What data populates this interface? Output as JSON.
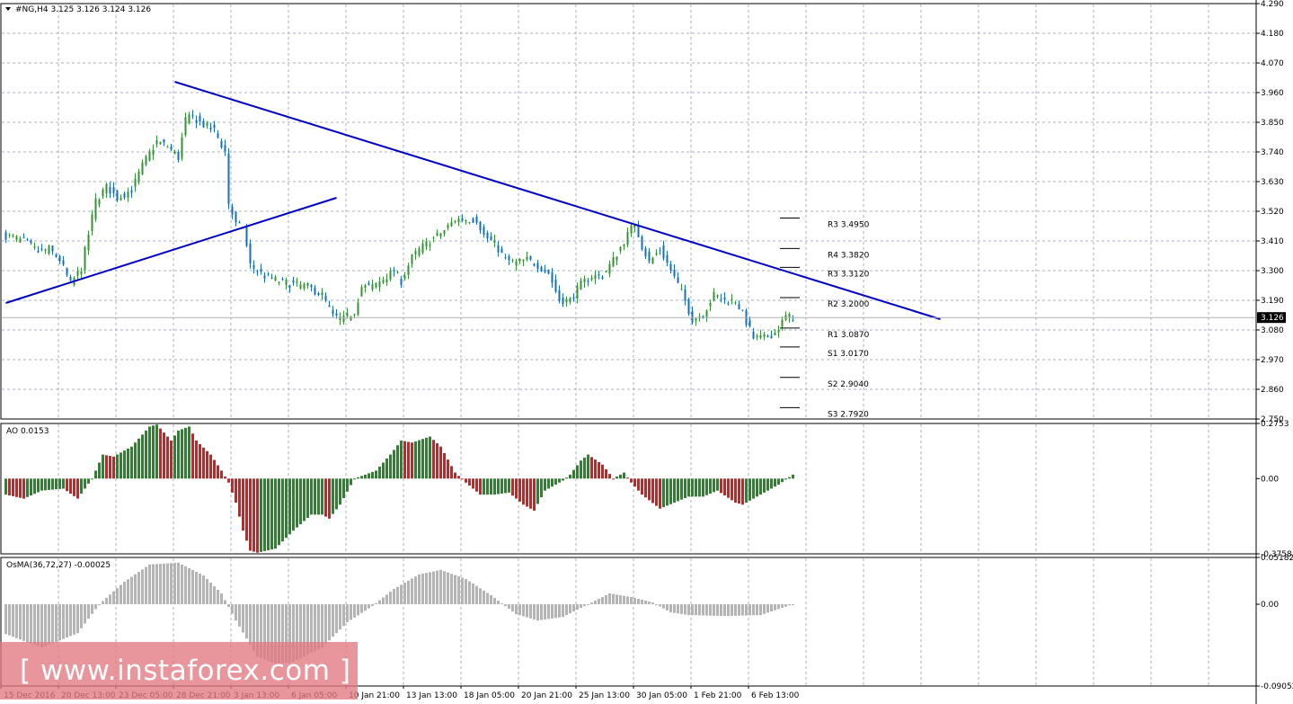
{
  "window": {
    "symbol_label": "#NG,H4",
    "ohlc_label": "3.125 3.126 3.124 3.126"
  },
  "price_axis": {
    "current_price_label": "3.126"
  },
  "colors": {
    "bull": "#3a8f3a",
    "bear": "#1a6fb0",
    "trendline": "#0000c8",
    "ao_up": "#1e8c1e",
    "ao_down": "#e01a1a",
    "osma": "#b4b4b4",
    "grid": "#a9b2bd"
  },
  "watermark": {
    "text": "[ www.instaforex.com ]"
  },
  "chart_data": [
    {
      "type": "candlestick",
      "title": "#NG,H4",
      "ylim": [
        2.75,
        4.29
      ],
      "yticks": [
        "4.290",
        "4.180",
        "4.070",
        "3.960",
        "3.850",
        "3.740",
        "3.630",
        "3.520",
        "3.410",
        "3.300",
        "3.190",
        "3.080",
        "2.970",
        "2.860",
        "2.750"
      ],
      "x_labels": [
        "15 Dec 2016",
        "20 Dec 13:00",
        "23 Dec 05:00",
        "28 Dec 21:00",
        "3 Jan 13:00",
        "6 Jan 05:00",
        "10 Jan 21:00",
        "13 Jan 13:00",
        "18 Jan 05:00",
        "20 Jan 21:00",
        "25 Jan 13:00",
        "30 Jan 05:00",
        "1 Feb 21:00",
        "6 Feb 13:00"
      ],
      "close_path": [
        {
          "i": 0,
          "p": 3.43
        },
        {
          "i": 5,
          "p": 3.41
        },
        {
          "i": 9,
          "p": 3.37
        },
        {
          "i": 12,
          "p": 3.38
        },
        {
          "i": 15,
          "p": 3.34
        },
        {
          "i": 18,
          "p": 3.25
        },
        {
          "i": 21,
          "p": 3.31
        },
        {
          "i": 25,
          "p": 3.56
        },
        {
          "i": 28,
          "p": 3.61
        },
        {
          "i": 31,
          "p": 3.57
        },
        {
          "i": 35,
          "p": 3.6
        },
        {
          "i": 38,
          "p": 3.69
        },
        {
          "i": 42,
          "p": 3.78
        },
        {
          "i": 45,
          "p": 3.76
        },
        {
          "i": 48,
          "p": 3.72
        },
        {
          "i": 50,
          "p": 3.86
        },
        {
          "i": 52,
          "p": 3.87
        },
        {
          "i": 55,
          "p": 3.84
        },
        {
          "i": 58,
          "p": 3.82
        },
        {
          "i": 61,
          "p": 3.74
        },
        {
          "i": 62,
          "p": 3.55
        },
        {
          "i": 64,
          "p": 3.47
        },
        {
          "i": 66,
          "p": 3.46
        },
        {
          "i": 68,
          "p": 3.32
        },
        {
          "i": 72,
          "p": 3.28
        },
        {
          "i": 76,
          "p": 3.26
        },
        {
          "i": 80,
          "p": 3.25
        },
        {
          "i": 84,
          "p": 3.24
        },
        {
          "i": 88,
          "p": 3.21
        },
        {
          "i": 91,
          "p": 3.13
        },
        {
          "i": 94,
          "p": 3.12
        },
        {
          "i": 97,
          "p": 3.15
        },
        {
          "i": 99,
          "p": 3.24
        },
        {
          "i": 102,
          "p": 3.24
        },
        {
          "i": 105,
          "p": 3.27
        },
        {
          "i": 108,
          "p": 3.3
        },
        {
          "i": 110,
          "p": 3.26
        },
        {
          "i": 113,
          "p": 3.35
        },
        {
          "i": 116,
          "p": 3.39
        },
        {
          "i": 119,
          "p": 3.42
        },
        {
          "i": 122,
          "p": 3.45
        },
        {
          "i": 125,
          "p": 3.49
        },
        {
          "i": 128,
          "p": 3.49
        },
        {
          "i": 131,
          "p": 3.49
        },
        {
          "i": 133,
          "p": 3.43
        },
        {
          "i": 136,
          "p": 3.4
        },
        {
          "i": 139,
          "p": 3.34
        },
        {
          "i": 142,
          "p": 3.33
        },
        {
          "i": 145,
          "p": 3.34
        },
        {
          "i": 148,
          "p": 3.32
        },
        {
          "i": 151,
          "p": 3.29
        },
        {
          "i": 154,
          "p": 3.19
        },
        {
          "i": 157,
          "p": 3.19
        },
        {
          "i": 160,
          "p": 3.25
        },
        {
          "i": 163,
          "p": 3.28
        },
        {
          "i": 166,
          "p": 3.28
        },
        {
          "i": 169,
          "p": 3.34
        },
        {
          "i": 172,
          "p": 3.41
        },
        {
          "i": 175,
          "p": 3.48
        },
        {
          "i": 177,
          "p": 3.39
        },
        {
          "i": 179,
          "p": 3.33
        },
        {
          "i": 182,
          "p": 3.38
        },
        {
          "i": 185,
          "p": 3.3
        },
        {
          "i": 188,
          "p": 3.22
        },
        {
          "i": 191,
          "p": 3.12
        },
        {
          "i": 194,
          "p": 3.14
        },
        {
          "i": 197,
          "p": 3.21
        },
        {
          "i": 200,
          "p": 3.19
        },
        {
          "i": 203,
          "p": 3.19
        },
        {
          "i": 205,
          "p": 3.14
        },
        {
          "i": 208,
          "p": 3.05
        },
        {
          "i": 211,
          "p": 3.05
        },
        {
          "i": 214,
          "p": 3.07
        },
        {
          "i": 217,
          "p": 3.13
        },
        {
          "i": 219,
          "p": 3.126
        }
      ],
      "pivot_levels": [
        {
          "label": "R3",
          "value": 3.495
        },
        {
          "label": "R4",
          "value": 3.382
        },
        {
          "label": "R3",
          "value": 3.312
        },
        {
          "label": "R2",
          "value": 3.2
        },
        {
          "label": "R1",
          "value": 3.087
        },
        {
          "label": "S1",
          "value": 3.017
        },
        {
          "label": "S2",
          "value": 2.904
        },
        {
          "label": "S3",
          "value": 2.792
        }
      ],
      "pivot_text": [
        "R3 3.4950",
        "R4 3.3820",
        "R3 3.3120",
        "R2 3.2000",
        "R1 3.0870",
        "S1 3.0170",
        "S2 2.9040",
        "S3 2.7920"
      ],
      "trendlines": [
        {
          "name": "upper",
          "from": {
            "i": 47,
            "p": 4.0
          },
          "to": {
            "i": 260,
            "p": 3.12
          }
        },
        {
          "name": "lower",
          "from": {
            "i": 0,
            "p": 3.18
          },
          "to": {
            "i": 92,
            "p": 3.57
          }
        }
      ]
    },
    {
      "type": "bar",
      "title": "AO 0.0153",
      "ylim": [
        -0.3758,
        0.2753
      ],
      "yticks": [
        "0.2753",
        "0.00",
        "-0.3758"
      ],
      "keyframes": [
        {
          "i": 0,
          "v": -0.08
        },
        {
          "i": 5,
          "v": -0.1
        },
        {
          "i": 10,
          "v": -0.06
        },
        {
          "i": 16,
          "v": -0.05
        },
        {
          "i": 20,
          "v": -0.1
        },
        {
          "i": 24,
          "v": 0.0
        },
        {
          "i": 27,
          "v": 0.12
        },
        {
          "i": 30,
          "v": 0.11
        },
        {
          "i": 35,
          "v": 0.16
        },
        {
          "i": 40,
          "v": 0.26
        },
        {
          "i": 42,
          "v": 0.27
        },
        {
          "i": 46,
          "v": 0.19
        },
        {
          "i": 48,
          "v": 0.24
        },
        {
          "i": 51,
          "v": 0.26
        },
        {
          "i": 53,
          "v": 0.19
        },
        {
          "i": 57,
          "v": 0.12
        },
        {
          "i": 60,
          "v": 0.04
        },
        {
          "i": 62,
          "v": -0.02
        },
        {
          "i": 64,
          "v": -0.12
        },
        {
          "i": 66,
          "v": -0.26
        },
        {
          "i": 68,
          "v": -0.36
        },
        {
          "i": 70,
          "v": -0.37
        },
        {
          "i": 75,
          "v": -0.35
        },
        {
          "i": 80,
          "v": -0.26
        },
        {
          "i": 85,
          "v": -0.18
        },
        {
          "i": 88,
          "v": -0.18
        },
        {
          "i": 90,
          "v": -0.2
        },
        {
          "i": 93,
          "v": -0.13
        },
        {
          "i": 97,
          "v": 0.0
        },
        {
          "i": 100,
          "v": 0.02
        },
        {
          "i": 103,
          "v": 0.04
        },
        {
          "i": 107,
          "v": 0.12
        },
        {
          "i": 110,
          "v": 0.19
        },
        {
          "i": 113,
          "v": 0.18
        },
        {
          "i": 118,
          "v": 0.21
        },
        {
          "i": 121,
          "v": 0.16
        },
        {
          "i": 125,
          "v": 0.03
        },
        {
          "i": 128,
          "v": -0.02
        },
        {
          "i": 132,
          "v": -0.08
        },
        {
          "i": 136,
          "v": -0.08
        },
        {
          "i": 140,
          "v": -0.07
        },
        {
          "i": 144,
          "v": -0.13
        },
        {
          "i": 147,
          "v": -0.16
        },
        {
          "i": 150,
          "v": -0.06
        },
        {
          "i": 155,
          "v": -0.01
        },
        {
          "i": 157,
          "v": 0.02
        },
        {
          "i": 160,
          "v": 0.09
        },
        {
          "i": 162,
          "v": 0.12
        },
        {
          "i": 166,
          "v": 0.07
        },
        {
          "i": 169,
          "v": 0.0
        },
        {
          "i": 172,
          "v": 0.03
        },
        {
          "i": 174,
          "v": -0.02
        },
        {
          "i": 177,
          "v": -0.08
        },
        {
          "i": 182,
          "v": -0.15
        },
        {
          "i": 186,
          "v": -0.12
        },
        {
          "i": 190,
          "v": -0.09
        },
        {
          "i": 194,
          "v": -0.09
        },
        {
          "i": 198,
          "v": -0.06
        },
        {
          "i": 203,
          "v": -0.12
        },
        {
          "i": 205,
          "v": -0.13
        },
        {
          "i": 210,
          "v": -0.08
        },
        {
          "i": 215,
          "v": -0.03
        },
        {
          "i": 219,
          "v": 0.02
        }
      ]
    },
    {
      "type": "bar",
      "title": "OsMA(36,72,27) -0.00025",
      "ylim": [
        -0.09052,
        0.05182
      ],
      "yticks": [
        "0.05182",
        "0.00",
        "-0.09052"
      ],
      "keyframes": [
        {
          "i": 0,
          "v": -0.033
        },
        {
          "i": 10,
          "v": -0.048
        },
        {
          "i": 20,
          "v": -0.032
        },
        {
          "i": 26,
          "v": 0.0
        },
        {
          "i": 33,
          "v": 0.025
        },
        {
          "i": 40,
          "v": 0.044
        },
        {
          "i": 48,
          "v": 0.046
        },
        {
          "i": 55,
          "v": 0.032
        },
        {
          "i": 60,
          "v": 0.012
        },
        {
          "i": 64,
          "v": -0.018
        },
        {
          "i": 70,
          "v": -0.058
        },
        {
          "i": 75,
          "v": -0.066
        },
        {
          "i": 80,
          "v": -0.064
        },
        {
          "i": 88,
          "v": -0.048
        },
        {
          "i": 95,
          "v": -0.02
        },
        {
          "i": 102,
          "v": -0.002
        },
        {
          "i": 108,
          "v": 0.017
        },
        {
          "i": 115,
          "v": 0.033
        },
        {
          "i": 121,
          "v": 0.038
        },
        {
          "i": 128,
          "v": 0.028
        },
        {
          "i": 135,
          "v": 0.01
        },
        {
          "i": 142,
          "v": -0.011
        },
        {
          "i": 148,
          "v": -0.018
        },
        {
          "i": 155,
          "v": -0.014
        },
        {
          "i": 162,
          "v": 0.0
        },
        {
          "i": 168,
          "v": 0.012
        },
        {
          "i": 174,
          "v": 0.008
        },
        {
          "i": 180,
          "v": 0.002
        },
        {
          "i": 185,
          "v": -0.009
        },
        {
          "i": 190,
          "v": -0.012
        },
        {
          "i": 200,
          "v": -0.013
        },
        {
          "i": 210,
          "v": -0.012
        },
        {
          "i": 219,
          "v": 0.0
        }
      ]
    }
  ]
}
